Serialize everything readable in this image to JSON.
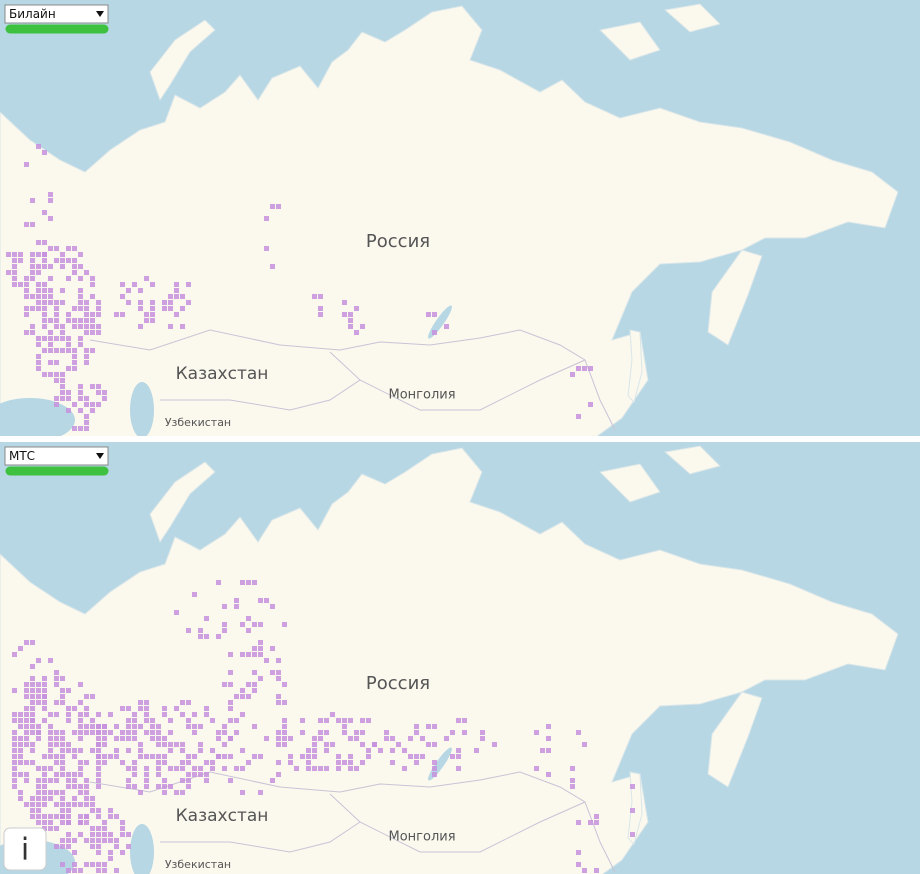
{
  "panels": [
    {
      "operator": "Билайн",
      "places": [
        "Россия",
        "Казахстан",
        "Монголия",
        "Узбекистан"
      ]
    },
    {
      "operator": "МТС",
      "places": [
        "Россия",
        "Казахстан",
        "Монголия",
        "Узбекистан"
      ]
    }
  ],
  "info_button": "i"
}
